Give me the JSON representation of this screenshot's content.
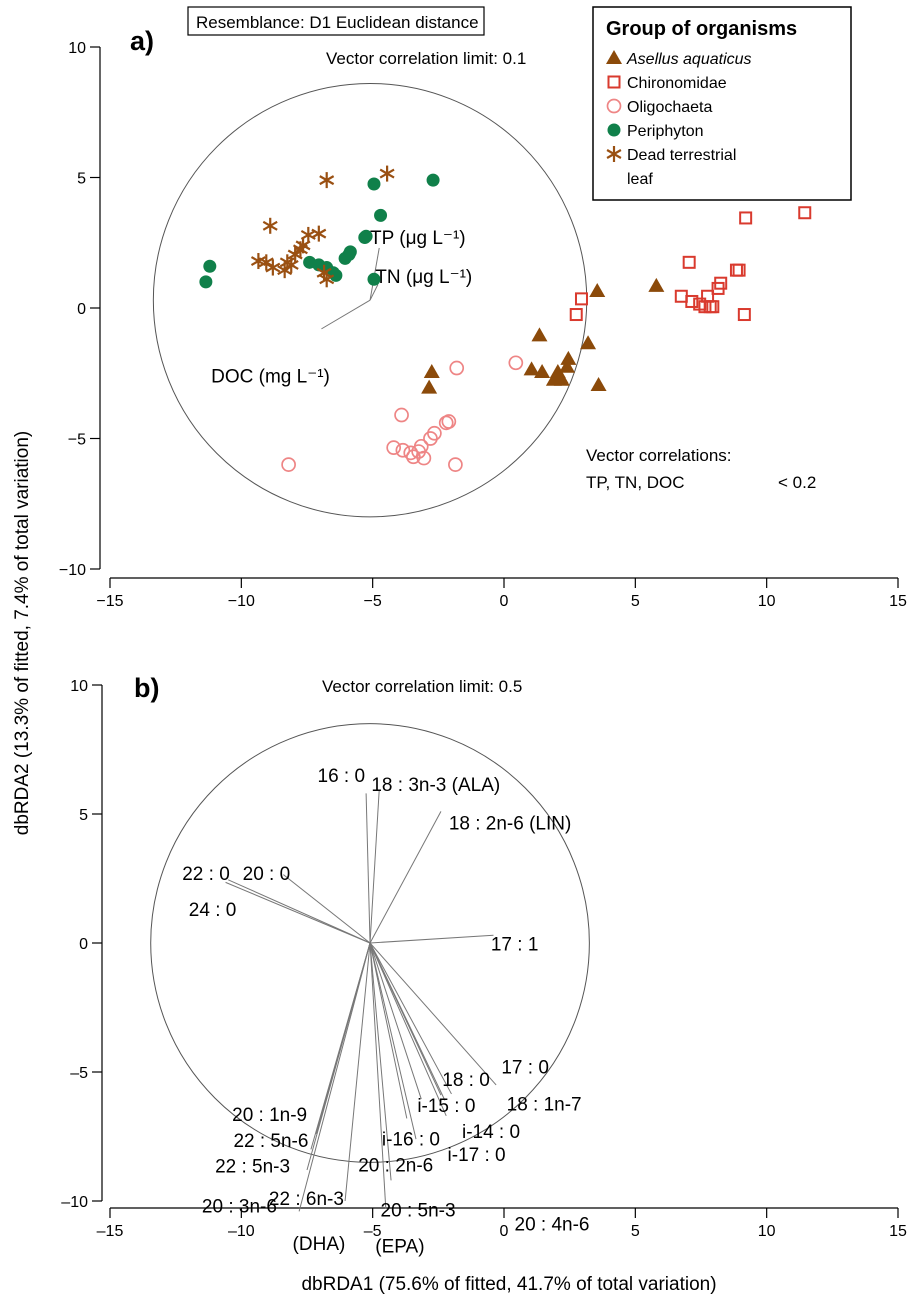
{
  "chart_data": [
    {
      "panel": "a)",
      "type": "scatter",
      "xlim": [
        -15,
        15
      ],
      "ylim": [
        -10,
        10
      ],
      "xticks": [
        "−15",
        "−10",
        "−5",
        "0",
        "5",
        "10",
        "15"
      ],
      "yticks": [
        "10",
        "5",
        "0",
        "−5",
        "−10"
      ],
      "ylabel": "dbRDA2 (13.3% of fitted, 7.4% of total variation)",
      "resemblance_label": "Resemblance: D1 Euclidean distance",
      "vector_limit_label": "Vector correlation limit: 0.1",
      "vector_correlations_title": "Vector correlations:",
      "vector_correlations_vars": "TP, TN, DOC",
      "vector_correlations_value": "< 0.2",
      "legend": {
        "title": "Group of organisms",
        "placement": "top-right",
        "items": [
          {
            "label": "Asellus aquaticus",
            "italic": true,
            "symbol": "triangle",
            "color": "#8B4A0A"
          },
          {
            "label": "Chironomidae",
            "italic": false,
            "symbol": "square-open",
            "color": "#D93A2E"
          },
          {
            "label": "Oligochaeta",
            "italic": false,
            "symbol": "circle-open",
            "color": "#EE8585"
          },
          {
            "label": "Periphyton",
            "italic": false,
            "symbol": "circle",
            "color": "#10804A"
          },
          {
            "label": "Dead terrestrial",
            "label2": "leaf",
            "italic": false,
            "symbol": "asterisk",
            "color": "#9A5012"
          }
        ]
      },
      "circle": {
        "cx": -5.1,
        "cy": 0.3,
        "r": 8.25
      },
      "vectors": [
        {
          "label": "TP (μg L⁻¹)",
          "x": -4.75,
          "y": 2.3
        },
        {
          "label": "TN (μg L⁻¹)",
          "x": -4.8,
          "y": 0.9
        },
        {
          "label": "DOC (mg L⁻¹)",
          "x": -6.95,
          "y": -0.8
        }
      ],
      "series": [
        {
          "symbol": "triangle",
          "points": [
            [
              -2.75,
              -2.45
            ],
            [
              -2.85,
              -3.05
            ],
            [
              1.05,
              -2.35
            ],
            [
              1.35,
              -1.05
            ],
            [
              1.45,
              -2.45
            ],
            [
              1.9,
              -2.75
            ],
            [
              2.05,
              -2.45
            ],
            [
              2.15,
              -2.65
            ],
            [
              2.2,
              -2.75
            ],
            [
              2.4,
              -2.25
            ],
            [
              2.45,
              -1.95
            ],
            [
              3.2,
              -1.35
            ],
            [
              3.55,
              0.65
            ],
            [
              3.6,
              -2.95
            ],
            [
              5.8,
              0.85
            ]
          ]
        },
        {
          "symbol": "square-open",
          "points": [
            [
              2.75,
              -0.25
            ],
            [
              2.95,
              0.35
            ],
            [
              6.75,
              0.45
            ],
            [
              7.05,
              1.75
            ],
            [
              7.15,
              0.25
            ],
            [
              7.45,
              0.15
            ],
            [
              7.65,
              0.05
            ],
            [
              7.75,
              0.45
            ],
            [
              7.85,
              0.05
            ],
            [
              7.95,
              0.05
            ],
            [
              8.15,
              0.75
            ],
            [
              8.25,
              0.95
            ],
            [
              8.85,
              1.45
            ],
            [
              8.95,
              1.45
            ],
            [
              9.15,
              -0.25
            ],
            [
              9.2,
              3.45
            ],
            [
              11.45,
              3.65
            ]
          ]
        },
        {
          "symbol": "circle-open",
          "points": [
            [
              -8.2,
              -6.0
            ],
            [
              -4.2,
              -5.35
            ],
            [
              -3.9,
              -4.1
            ],
            [
              -3.85,
              -5.45
            ],
            [
              -3.55,
              -5.55
            ],
            [
              -3.45,
              -5.7
            ],
            [
              -3.25,
              -5.5
            ],
            [
              -3.15,
              -5.3
            ],
            [
              -3.05,
              -5.75
            ],
            [
              -2.8,
              -5.0
            ],
            [
              -2.65,
              -4.8
            ],
            [
              -2.2,
              -4.4
            ],
            [
              -2.1,
              -4.35
            ],
            [
              -1.85,
              -6.0
            ],
            [
              -1.8,
              -2.3
            ],
            [
              0.45,
              -2.1
            ]
          ]
        },
        {
          "symbol": "circle",
          "points": [
            [
              -11.35,
              1.0
            ],
            [
              -11.2,
              1.6
            ],
            [
              -7.4,
              1.75
            ],
            [
              -7.05,
              1.65
            ],
            [
              -6.75,
              1.55
            ],
            [
              -6.5,
              1.35
            ],
            [
              -6.4,
              1.25
            ],
            [
              -6.05,
              1.9
            ],
            [
              -5.9,
              2.05
            ],
            [
              -5.85,
              2.15
            ],
            [
              -5.3,
              2.7
            ],
            [
              -5.25,
              2.75
            ],
            [
              -4.95,
              1.1
            ],
            [
              -4.95,
              4.75
            ],
            [
              -4.7,
              3.55
            ],
            [
              -2.7,
              4.9
            ]
          ]
        },
        {
          "symbol": "asterisk",
          "points": [
            [
              -9.35,
              1.8
            ],
            [
              -9.05,
              1.75
            ],
            [
              -8.9,
              3.15
            ],
            [
              -8.8,
              1.55
            ],
            [
              -8.35,
              1.45
            ],
            [
              -8.25,
              1.75
            ],
            [
              -8.1,
              1.65
            ],
            [
              -7.95,
              2.05
            ],
            [
              -7.75,
              2.25
            ],
            [
              -7.65,
              2.4
            ],
            [
              -7.45,
              2.8
            ],
            [
              -7.05,
              2.85
            ],
            [
              -6.85,
              1.35
            ],
            [
              -6.75,
              1.1
            ],
            [
              -6.75,
              4.9
            ],
            [
              -4.45,
              5.15
            ]
          ]
        }
      ]
    },
    {
      "panel": "b)",
      "type": "scatter",
      "xlim": [
        -15,
        15
      ],
      "ylim": [
        -10,
        10
      ],
      "xticks": [
        "–15",
        "–10",
        "–5",
        "0",
        "5",
        "10",
        "15"
      ],
      "yticks": [
        "10",
        "5",
        "0",
        "–5",
        "–10"
      ],
      "xlabel": "dbRDA1 (75.6% of fitted, 41.7% of total variation)",
      "vector_limit_label": "Vector correlation limit: 0.5",
      "circle": {
        "cx": -5.1,
        "cy": 0.0,
        "r": 8.35
      },
      "vectors": [
        {
          "label": "16 : 0",
          "x": -5.25,
          "y": 5.8
        },
        {
          "label": "18 : 3n-3 (ALA)",
          "x": -4.75,
          "y": 5.95
        },
        {
          "label": "18 : 2n-6 (LIN)",
          "x": -2.4,
          "y": 5.1
        },
        {
          "label": "20 : 0",
          "x": -8.4,
          "y": 2.65
        },
        {
          "label": "22 : 0",
          "x": -10.5,
          "y": 2.45
        },
        {
          "label": "24 : 0",
          "x": -10.6,
          "y": 2.35
        },
        {
          "label": "17 : 1",
          "x": -0.4,
          "y": 0.3
        },
        {
          "label": "17 : 0",
          "x": -0.3,
          "y": -5.5
        },
        {
          "label": "18 : 0",
          "x": -2.4,
          "y": -5.9
        },
        {
          "label": "18 : 1n-7",
          "x": -2.0,
          "y": -5.85
        },
        {
          "label": "i-15 : 0",
          "x": -3.15,
          "y": -6.05
        },
        {
          "label": "i-14 : 0",
          "x": -2.25,
          "y": -6.1
        },
        {
          "label": "i-16 : 0",
          "x": -3.7,
          "y": -6.8
        },
        {
          "label": "i-17 : 0",
          "x": -2.2,
          "y": -6.7
        },
        {
          "label": "20 : 2n-6",
          "x": -3.35,
          "y": -7.6
        },
        {
          "label": "20 : 1n-9",
          "x": -7.15,
          "y": -7.4
        },
        {
          "label": "22 : 5n-6",
          "x": -7.35,
          "y": -8.0
        },
        {
          "label": "22 : 5n-3",
          "x": -7.5,
          "y": -8.8
        },
        {
          "label": "20 : 3n-6",
          "x": -7.8,
          "y": -10.4
        },
        {
          "label": "22 : 6n-3",
          "x": -6.05,
          "y": -10.0
        },
        {
          "label": "20 : 5n-3",
          "x": -4.5,
          "y": -10.3
        },
        {
          "label": "20 : 4n-6",
          "x": -4.3,
          "y": -9.2
        }
      ],
      "vector_text": [
        {
          "label": "16 : 0",
          "x": -7.1,
          "y": 6.25,
          "anchor": "start"
        },
        {
          "label": "18 : 3n-3 (ALA)",
          "x": -5.05,
          "y": 5.9,
          "anchor": "start"
        },
        {
          "label": "18 : 2n-6 (LIN)",
          "x": -2.1,
          "y": 4.4,
          "anchor": "start"
        },
        {
          "label": "22 : 0",
          "x": -12.25,
          "y": 2.45,
          "anchor": "start"
        },
        {
          "label": "20 : 0",
          "x": -9.95,
          "y": 2.45,
          "anchor": "start"
        },
        {
          "label": "24 : 0",
          "x": -12.0,
          "y": 1.05,
          "anchor": "start"
        },
        {
          "label": "17 : 1",
          "x": -0.5,
          "y": -0.3,
          "anchor": "start"
        },
        {
          "label": "17 : 0",
          "x": -0.1,
          "y": -5.05,
          "anchor": "start"
        },
        {
          "label": "18 : 0",
          "x": -2.35,
          "y": -5.55,
          "anchor": "start"
        },
        {
          "label": "18 : 1n-7",
          "x": 0.1,
          "y": -6.5,
          "anchor": "start"
        },
        {
          "label": "i-15 : 0",
          "x": -3.3,
          "y": -6.55,
          "anchor": "start"
        },
        {
          "label": "i-14 : 0",
          "x": -1.6,
          "y": -7.55,
          "anchor": "start"
        },
        {
          "label": "i-16 : 0",
          "x": -4.65,
          "y": -7.85,
          "anchor": "start"
        },
        {
          "label": "i-17 : 0",
          "x": -2.15,
          "y": -8.45,
          "anchor": "start"
        },
        {
          "label": "20 : 1n-9",
          "x": -10.35,
          "y": -6.9,
          "anchor": "start"
        },
        {
          "label": "22 : 5n-6",
          "x": -10.3,
          "y": -7.9,
          "anchor": "start"
        },
        {
          "label": "20 : 2n-6",
          "x": -5.55,
          "y": -8.85,
          "anchor": "start"
        },
        {
          "label": "22 : 5n-3",
          "x": -11.0,
          "y": -8.9,
          "anchor": "start"
        },
        {
          "label": "20 : 3n-6",
          "x": -11.5,
          "y": -10.45,
          "anchor": "start"
        },
        {
          "label": "22 : 6n-3",
          "x": -8.95,
          "y": -10.15,
          "anchor": "start"
        },
        {
          "label": "(DHA)",
          "x": -8.05,
          "y": -11.9,
          "anchor": "start"
        },
        {
          "label": "20 : 5n-3",
          "x": -4.7,
          "y": -10.6,
          "anchor": "start"
        },
        {
          "label": "(EPA)",
          "x": -4.9,
          "y": -12.0,
          "anchor": "start"
        },
        {
          "label": "20 : 4n-6",
          "x": 0.4,
          "y": -11.15,
          "anchor": "start"
        }
      ]
    }
  ],
  "panel_a_vector_text": [
    {
      "label": "TP (μg L⁻¹)",
      "x": -5.1,
      "y": 2.45
    },
    {
      "label": "TN (μg L⁻¹)",
      "x": -4.9,
      "y": 0.95
    },
    {
      "label": "DOC (mg L⁻¹)",
      "x": -11.15,
      "y": -2.85
    }
  ],
  "colors": {
    "axis": "#000000",
    "circle": "#555555",
    "vector": "#777777"
  }
}
